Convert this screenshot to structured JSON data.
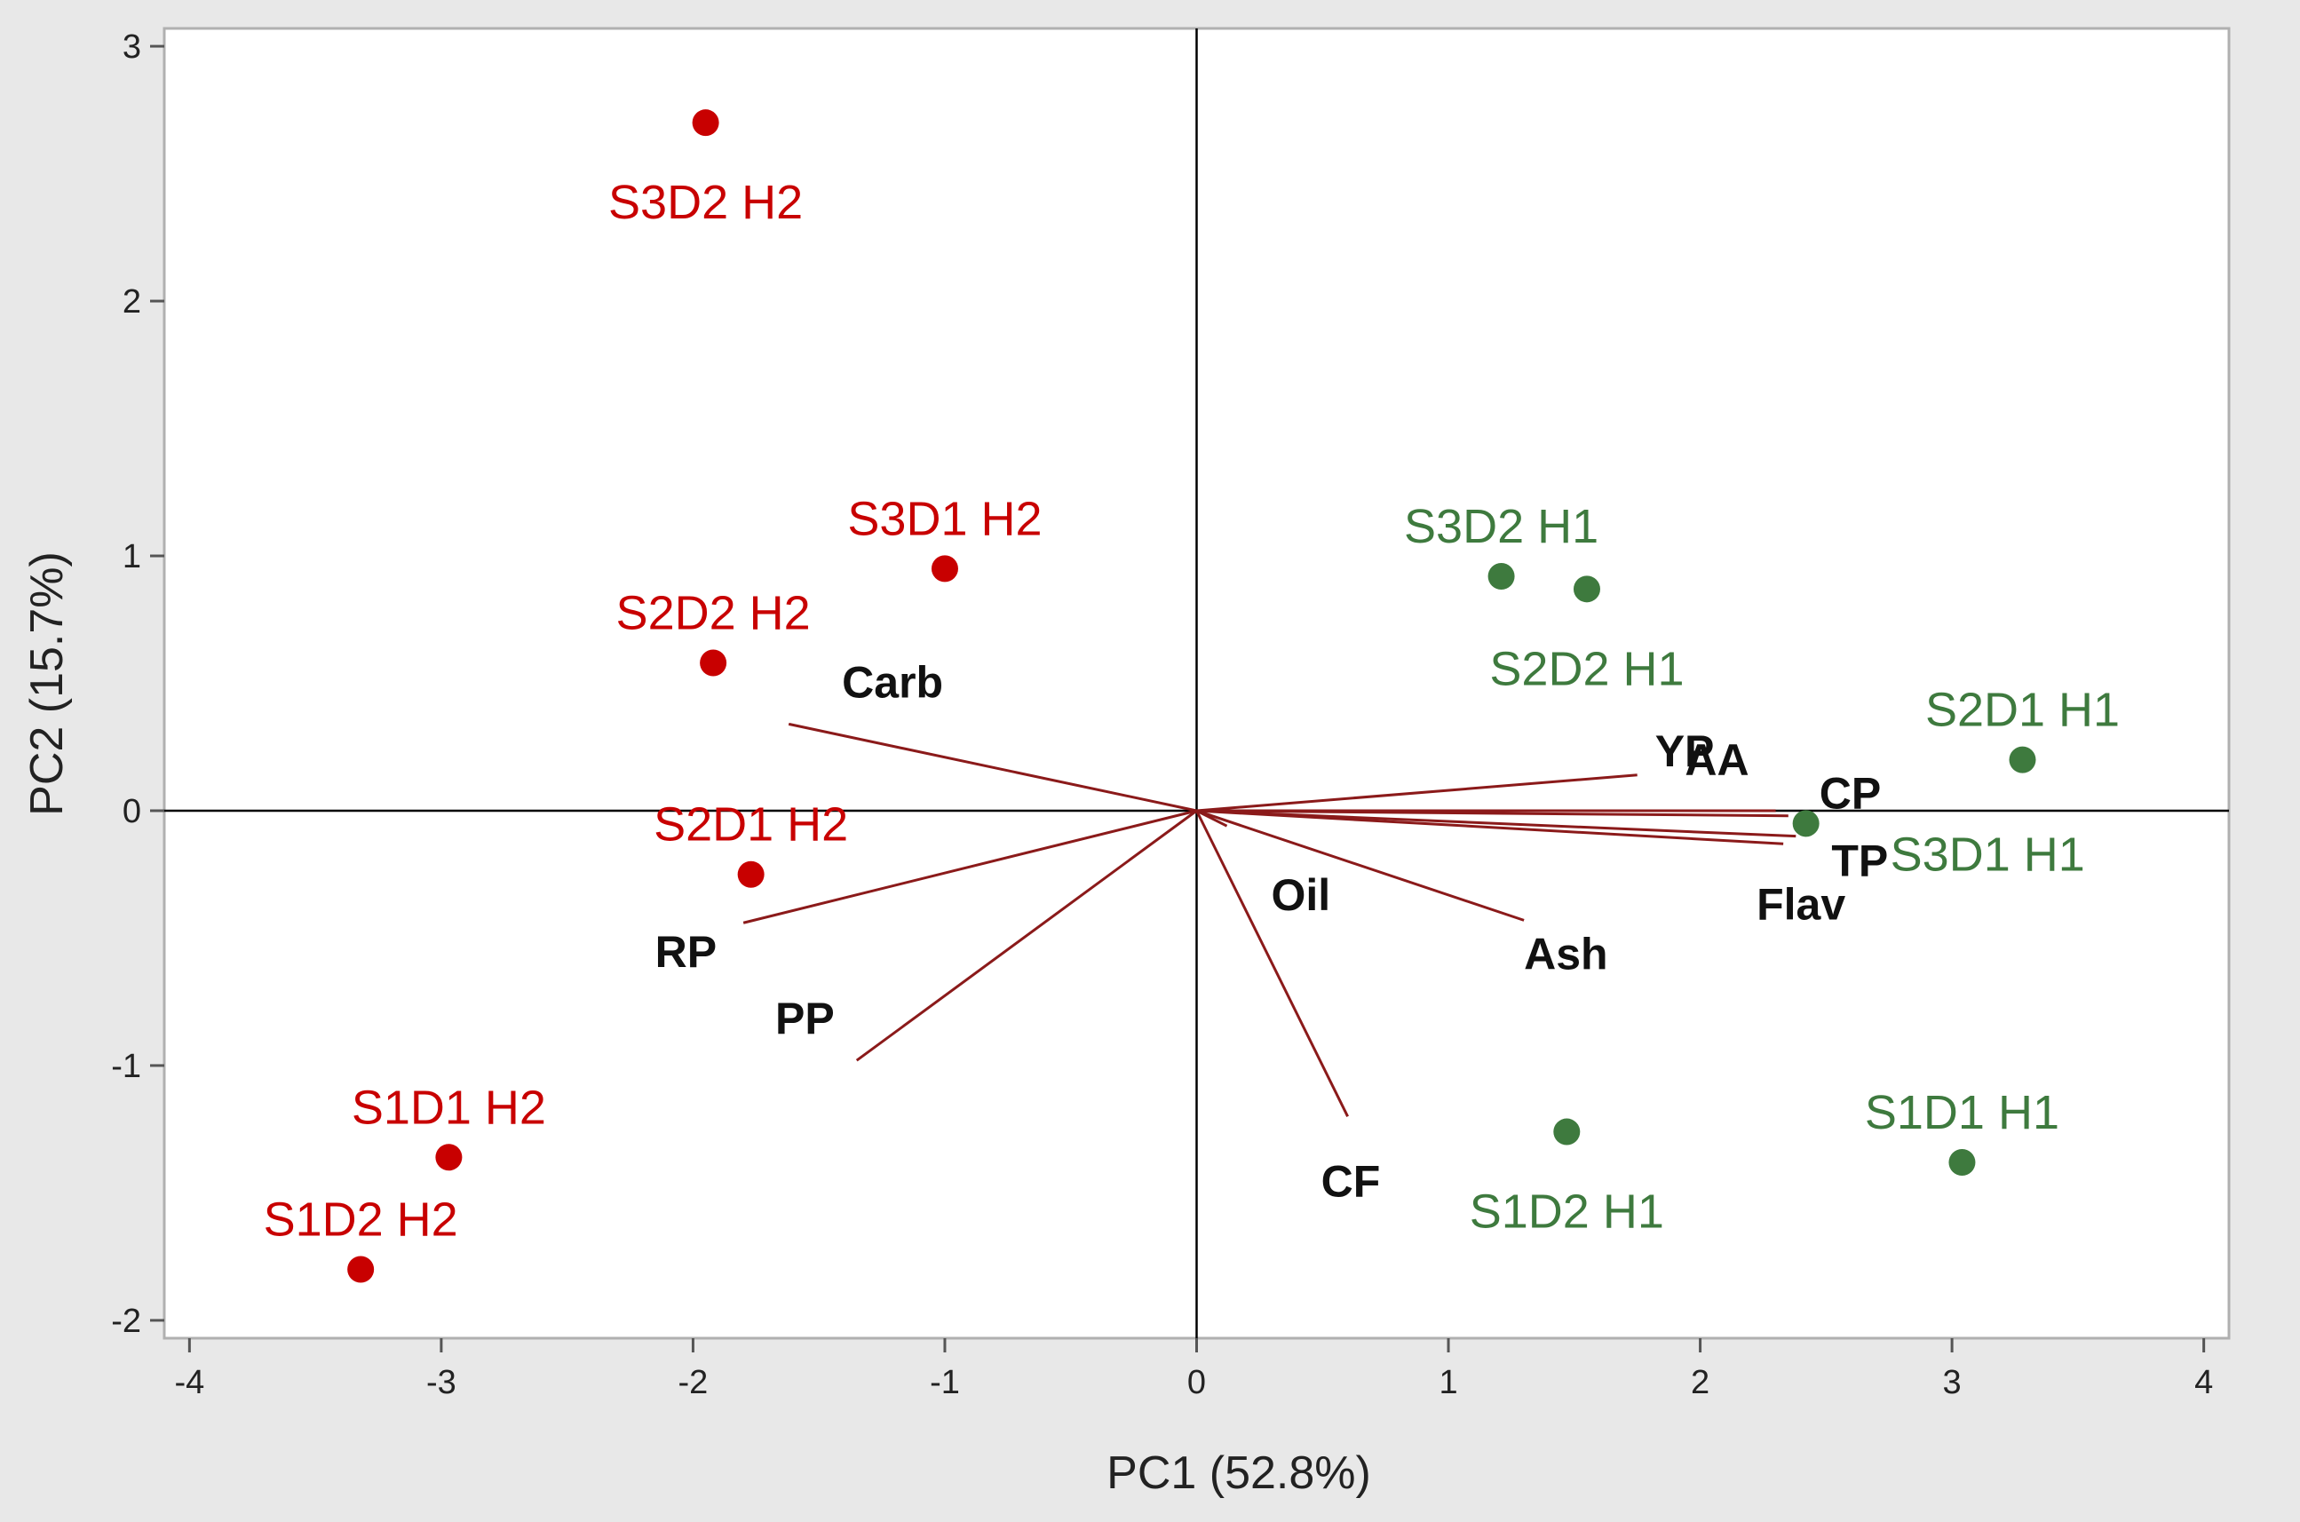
{
  "chart_data": {
    "type": "scatter",
    "subtype": "pca-biplot",
    "xlabel": "PC1 (52.8%)",
    "ylabel": "PC2 (15.7%)",
    "xlim": [
      -4.1,
      4.1
    ],
    "ylim": [
      -2.07,
      3.07
    ],
    "xticks": [
      -4,
      -3,
      -2,
      -1,
      0,
      1,
      2,
      3,
      4
    ],
    "yticks": [
      -2,
      -1,
      0,
      1,
      2,
      3
    ],
    "grid": false,
    "reference_lines": [
      0,
      0
    ],
    "colors": {
      "H2": "#c80000",
      "H1": "#3e7a3e",
      "vector": "#8b1a1a"
    },
    "points": [
      {
        "label": "S3D2 H2",
        "group": "H2",
        "x": -1.95,
        "y": 2.7,
        "label_pos": "below"
      },
      {
        "label": "S3D1 H2",
        "group": "H2",
        "x": -1.0,
        "y": 0.95,
        "label_pos": "above"
      },
      {
        "label": "S2D2 H2",
        "group": "H2",
        "x": -1.92,
        "y": 0.58,
        "label_pos": "above"
      },
      {
        "label": "S2D1 H2",
        "group": "H2",
        "x": -1.77,
        "y": -0.25,
        "label_pos": "above"
      },
      {
        "label": "S1D1 H2",
        "group": "H2",
        "x": -2.97,
        "y": -1.36,
        "label_pos": "above"
      },
      {
        "label": "S1D2 H2",
        "group": "H2",
        "x": -3.32,
        "y": -1.8,
        "label_pos": "above"
      },
      {
        "label": "S3D2 H1",
        "group": "H1",
        "x": 1.21,
        "y": 0.92,
        "label_pos": "above"
      },
      {
        "label": "S2D2 H1",
        "group": "H1",
        "x": 1.55,
        "y": 0.87,
        "label_pos": "below"
      },
      {
        "label": "S2D1 H1",
        "group": "H1",
        "x": 3.28,
        "y": 0.2,
        "label_pos": "above"
      },
      {
        "label": "S3D1 H1",
        "group": "H1",
        "x": 2.42,
        "y": -0.05,
        "label_pos": "right"
      },
      {
        "label": "S1D2 H1",
        "group": "H1",
        "x": 1.47,
        "y": -1.26,
        "label_pos": "below"
      },
      {
        "label": "S1D1 H1",
        "group": "H1",
        "x": 3.04,
        "y": -1.38,
        "label_pos": "above"
      }
    ],
    "vectors": [
      {
        "label": "Carb",
        "x": -1.62,
        "y": 0.34
      },
      {
        "label": "YP",
        "x": 1.75,
        "y": 0.14
      },
      {
        "label": "AA",
        "x": 2.3,
        "y": 0.0
      },
      {
        "label": "CP",
        "x": 2.35,
        "y": -0.02
      },
      {
        "label": "TP",
        "x": 2.38,
        "y": -0.1
      },
      {
        "label": "Flav",
        "x": 2.33,
        "y": -0.13
      },
      {
        "label": "Oil",
        "x": 0.12,
        "y": -0.06
      },
      {
        "label": "Ash",
        "x": 1.3,
        "y": -0.43
      },
      {
        "label": "RP",
        "x": -1.8,
        "y": -0.44
      },
      {
        "label": "PP",
        "x": -1.35,
        "y": -0.98
      },
      {
        "label": "CF",
        "x": 0.6,
        "y": -1.2
      }
    ]
  }
}
